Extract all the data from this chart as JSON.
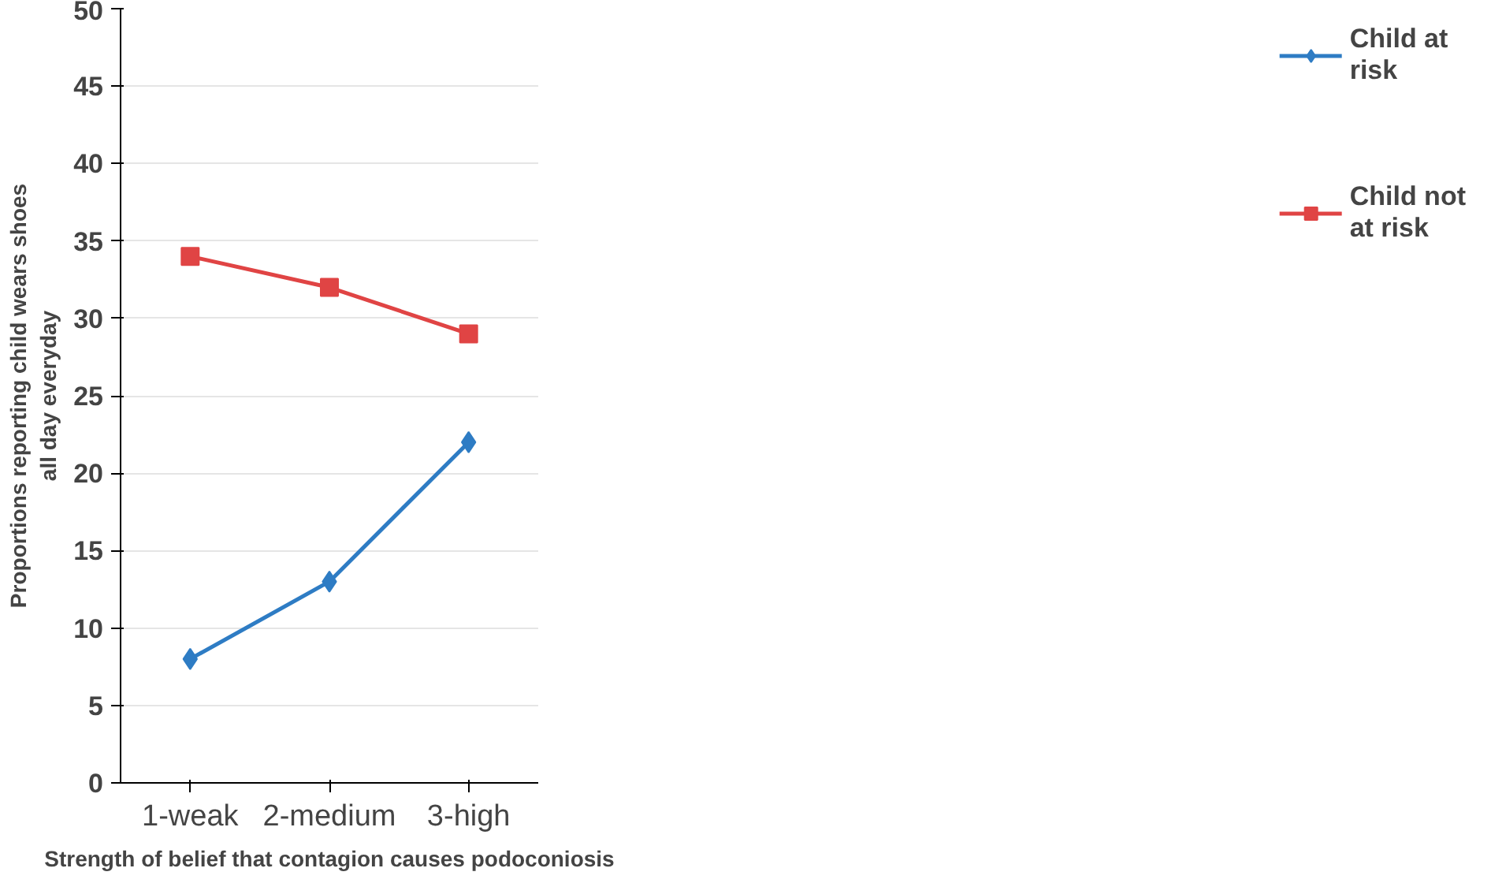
{
  "chart_data": {
    "type": "line",
    "xlabel": "Strength of belief that contagion causes podoconiosis",
    "ylabel": "Proportions reporting child wears shoes all day everyday",
    "categories": [
      "1-weak",
      "2-medium",
      "3-high"
    ],
    "series": [
      {
        "name": "Child at risk",
        "color": "#2e7cc4",
        "marker": "diamond",
        "values": [
          8,
          13,
          22
        ]
      },
      {
        "name": "Child not at risk",
        "color": "#e04444",
        "marker": "square",
        "values": [
          34,
          32,
          29
        ]
      }
    ],
    "ylim": [
      0,
      50
    ],
    "yticks": [
      0,
      5,
      10,
      15,
      20,
      25,
      30,
      35,
      40,
      45,
      50
    ],
    "grid": "y",
    "legend": "right"
  }
}
